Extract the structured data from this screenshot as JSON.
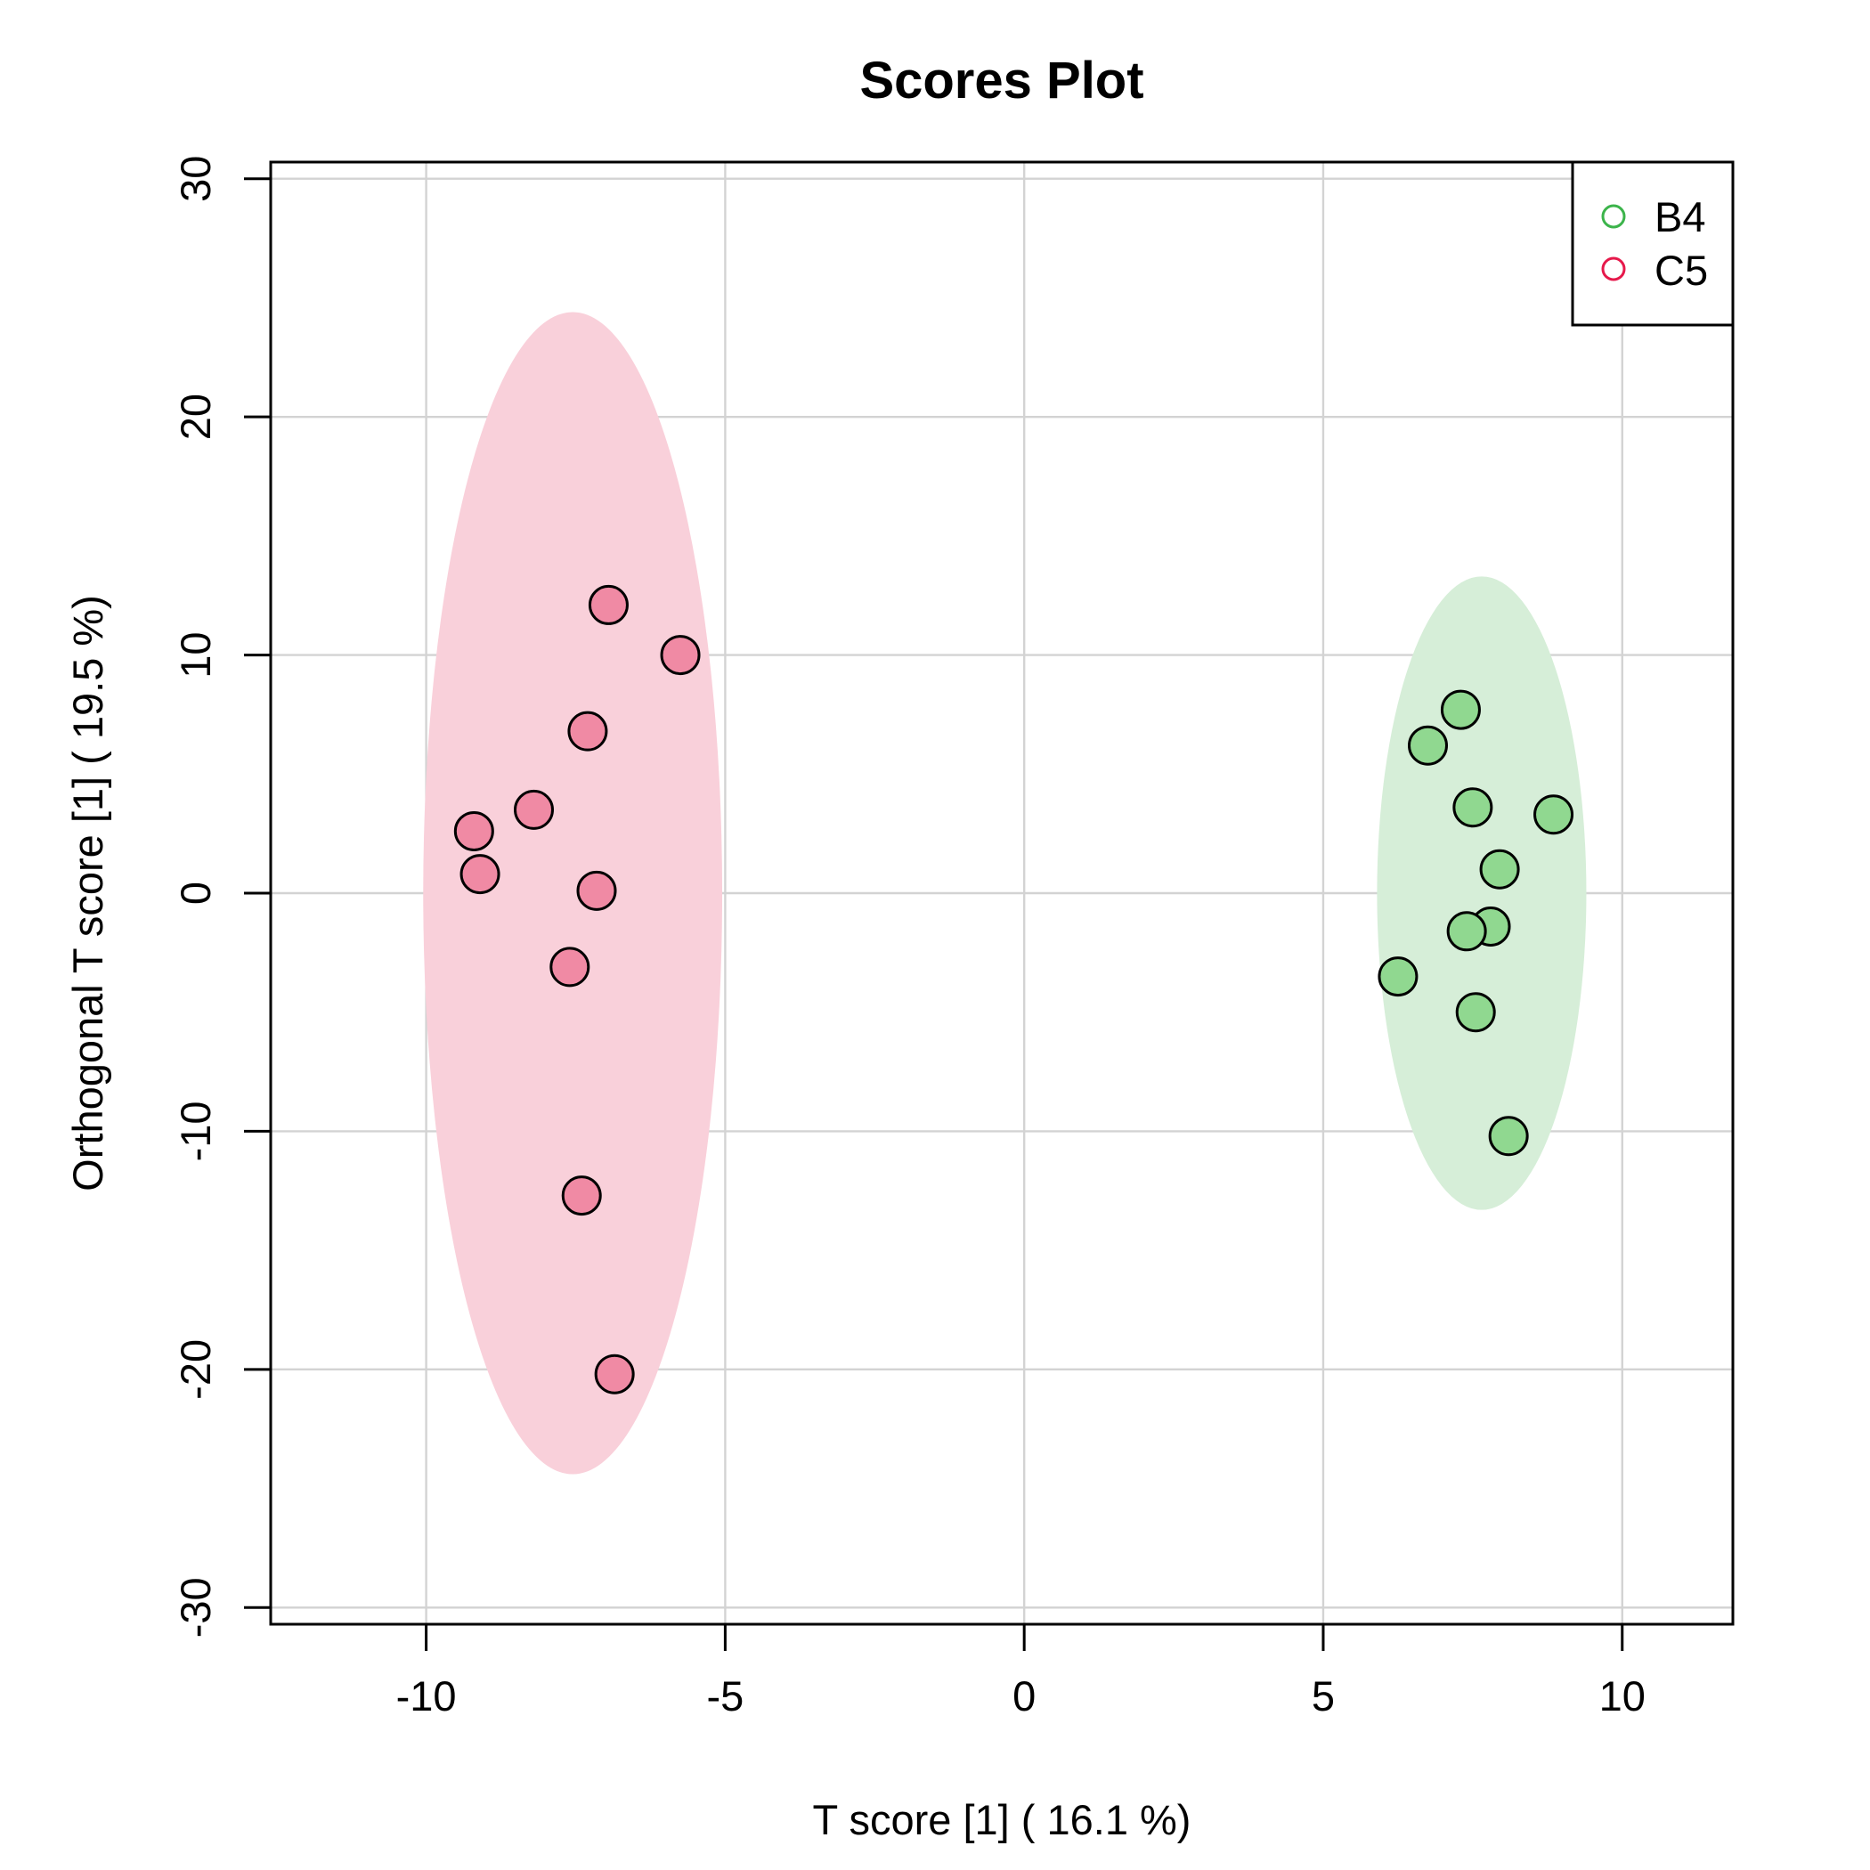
{
  "chart_data": {
    "type": "scatter",
    "title": "Scores Plot",
    "xlabel": "T score [1] ( 16.1 %)",
    "ylabel": "Orthogonal T score [1] ( 19.5 %)",
    "xlim": [
      -12.6,
      11.85
    ],
    "ylim": [
      -30.7,
      30.7
    ],
    "x_ticks": [
      -10,
      -5,
      0,
      5,
      10
    ],
    "y_ticks": [
      -30,
      -20,
      -10,
      0,
      10,
      20,
      30
    ],
    "x_tick_labels": [
      "-10",
      "-5",
      "0",
      "5",
      "10"
    ],
    "y_tick_labels": [
      "-30",
      "-20",
      "-10",
      "0",
      "10",
      "20",
      "30"
    ],
    "grid": true,
    "legend_position": "top-right",
    "series": [
      {
        "name": "B4",
        "color": "#3cb44b",
        "fill": "#90d890",
        "ellipse_fill": "#d6eed8",
        "ellipse": {
          "cx": 7.65,
          "cy": 0,
          "rx": 1.75,
          "ry": 13.3
        },
        "points": [
          {
            "x": 7.3,
            "y": 7.7
          },
          {
            "x": 6.75,
            "y": 6.2
          },
          {
            "x": 7.5,
            "y": 3.6
          },
          {
            "x": 8.85,
            "y": 3.3
          },
          {
            "x": 7.95,
            "y": 1.0
          },
          {
            "x": 7.8,
            "y": -1.4
          },
          {
            "x": 7.4,
            "y": -1.6
          },
          {
            "x": 6.25,
            "y": -3.5
          },
          {
            "x": 7.55,
            "y": -5.0
          },
          {
            "x": 8.1,
            "y": -10.2
          }
        ]
      },
      {
        "name": "C5",
        "color": "#e6194b",
        "fill": "#f08aa4",
        "ellipse_fill": "#f9d0da",
        "ellipse": {
          "cx": -7.55,
          "cy": 0,
          "rx": 2.5,
          "ry": 24.4
        },
        "points": [
          {
            "x": -6.95,
            "y": 12.1
          },
          {
            "x": -5.75,
            "y": 10.0
          },
          {
            "x": -7.3,
            "y": 6.8
          },
          {
            "x": -8.2,
            "y": 3.5
          },
          {
            "x": -9.2,
            "y": 2.6
          },
          {
            "x": -9.1,
            "y": 0.8
          },
          {
            "x": -7.15,
            "y": 0.1
          },
          {
            "x": -7.6,
            "y": -3.1
          },
          {
            "x": -7.4,
            "y": -12.7
          },
          {
            "x": -6.85,
            "y": -20.2
          }
        ]
      }
    ]
  }
}
